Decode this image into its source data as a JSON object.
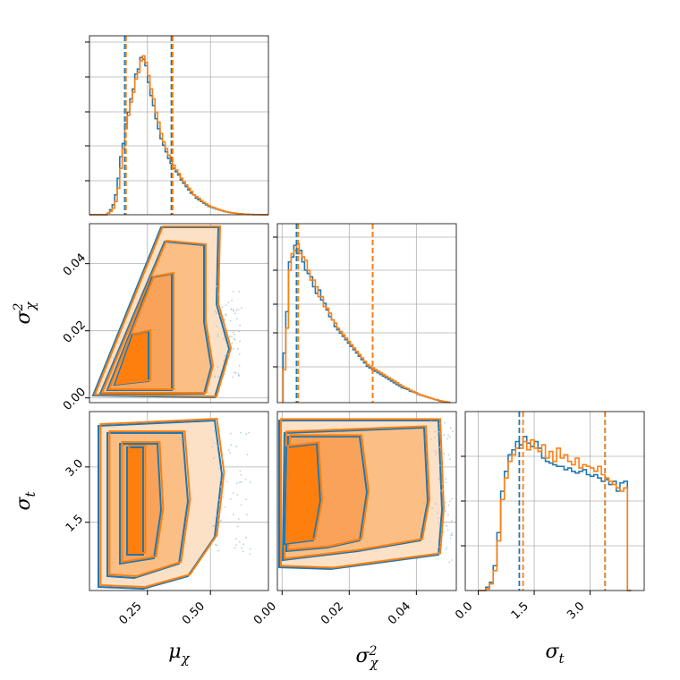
{
  "chart_data": {
    "type": "corner",
    "parameters": [
      "μχ",
      "σχ²",
      "σt"
    ],
    "axis_labels": {
      "mu_chi": {
        "base": "μ",
        "sub": "χ"
      },
      "sigma2_chi": {
        "base": "σ",
        "sup": "2",
        "sub": "χ"
      },
      "sigma_t": {
        "base": "σ",
        "sub": "t"
      }
    },
    "ranges": {
      "mu_chi": [
        0.02,
        0.73
      ],
      "sigma2_chi": [
        -0.0014,
        0.0519
      ],
      "sigma_t": [
        -0.35,
        4.45
      ]
    },
    "ticks": {
      "mu_chi": [
        "0.25",
        "0.50"
      ],
      "sigma2_chi": [
        "0.00",
        "0.02",
        "0.04"
      ],
      "sigma_t": [
        "0.0",
        "1.5",
        "3.0"
      ],
      "sigma_t_y": [
        "1.5",
        "3.0"
      ]
    },
    "colors": {
      "blue": "#1f77b4",
      "orange": "#ff7f0e"
    },
    "grid": true,
    "series": [
      {
        "color": "#1f77b4",
        "quantiles": {
          "mu_chi": [
            0.16,
            0.345
          ],
          "sigma2_chi": [
            0.0043,
            0.027
          ],
          "sigma_t": [
            1.1,
            3.4
          ]
        }
      },
      {
        "color": "#ff7f0e",
        "quantiles": {
          "mu_chi": [
            0.165,
            0.35
          ],
          "sigma2_chi": [
            0.0048,
            0.027
          ],
          "sigma_t": [
            1.2,
            3.4
          ]
        }
      }
    ],
    "hist_mu_chi": {
      "x": [
        0.025,
        0.035,
        0.045,
        0.055,
        0.065,
        0.075,
        0.085,
        0.095,
        0.105,
        0.115,
        0.125,
        0.135,
        0.145,
        0.155,
        0.165,
        0.175,
        0.185,
        0.195,
        0.205,
        0.215,
        0.225,
        0.235,
        0.245,
        0.255,
        0.265,
        0.275,
        0.285,
        0.295,
        0.305,
        0.315,
        0.325,
        0.335,
        0.345,
        0.355,
        0.365,
        0.375,
        0.385,
        0.395,
        0.405,
        0.415,
        0.425,
        0.435,
        0.445,
        0.455,
        0.465,
        0.475,
        0.485,
        0.495,
        0.505,
        0.515,
        0.525,
        0.535,
        0.545,
        0.555,
        0.565,
        0.575,
        0.585,
        0.595,
        0.605,
        0.615,
        0.625,
        0.635,
        0.645,
        0.655,
        0.665,
        0.675,
        0.685,
        0.695,
        0.705,
        0.715,
        0.725
      ],
      "blue": [
        0,
        0,
        0,
        0,
        0,
        0,
        0,
        0.01,
        0.03,
        0.06,
        0.12,
        0.22,
        0.35,
        0.43,
        0.55,
        0.62,
        0.7,
        0.76,
        0.85,
        0.88,
        0.95,
        0.94,
        0.9,
        0.8,
        0.72,
        0.66,
        0.58,
        0.52,
        0.46,
        0.42,
        0.38,
        0.34,
        0.31,
        0.28,
        0.26,
        0.24,
        0.21,
        0.19,
        0.17,
        0.15,
        0.13,
        0.12,
        0.1,
        0.09,
        0.08,
        0.07,
        0.06,
        0.05,
        0.045,
        0.04,
        0.035,
        0.03,
        0.025,
        0.02,
        0.017,
        0.014,
        0.012,
        0.01,
        0.008,
        0.006,
        0.005,
        0.004,
        0.003,
        0.002,
        0.002,
        0.001,
        0.001,
        0.001,
        0,
        0,
        0
      ],
      "orange": [
        0,
        0,
        0,
        0,
        0,
        0,
        0,
        0.01,
        0.02,
        0.04,
        0.08,
        0.16,
        0.28,
        0.4,
        0.52,
        0.6,
        0.68,
        0.74,
        0.82,
        0.86,
        0.93,
        0.96,
        0.92,
        0.84,
        0.76,
        0.7,
        0.62,
        0.56,
        0.49,
        0.44,
        0.4,
        0.36,
        0.33,
        0.3,
        0.27,
        0.25,
        0.22,
        0.2,
        0.18,
        0.16,
        0.14,
        0.12,
        0.11,
        0.1,
        0.085,
        0.075,
        0.065,
        0.055,
        0.048,
        0.042,
        0.036,
        0.031,
        0.026,
        0.022,
        0.018,
        0.015,
        0.012,
        0.01,
        0.008,
        0.006,
        0.005,
        0.004,
        0.003,
        0.002,
        0.002,
        0.001,
        0.001,
        0.001,
        0,
        0,
        0
      ]
    },
    "hist_sigma2_chi": {
      "x": [
        0.0007,
        0.0015,
        0.0023,
        0.0031,
        0.0039,
        0.0047,
        0.0055,
        0.0063,
        0.0071,
        0.0079,
        0.0087,
        0.0095,
        0.0103,
        0.0111,
        0.0119,
        0.0127,
        0.0135,
        0.0143,
        0.0151,
        0.0159,
        0.0167,
        0.0175,
        0.0183,
        0.0191,
        0.0199,
        0.0207,
        0.0215,
        0.0223,
        0.0231,
        0.0239,
        0.0247,
        0.0255,
        0.0263,
        0.0271,
        0.0279,
        0.0287,
        0.0295,
        0.0303,
        0.0311,
        0.0319,
        0.0327,
        0.0335,
        0.0343,
        0.0351,
        0.0359,
        0.0367,
        0.0375,
        0.0383,
        0.0391,
        0.0399,
        0.0407,
        0.0415,
        0.0423,
        0.0431,
        0.0439,
        0.0447,
        0.0455,
        0.0463,
        0.0471,
        0.0479,
        0.0487,
        0.0495
      ],
      "blue": [
        0.3,
        0.55,
        0.85,
        0.88,
        0.95,
        0.9,
        0.92,
        0.85,
        0.8,
        0.78,
        0.76,
        0.7,
        0.66,
        0.68,
        0.62,
        0.6,
        0.56,
        0.52,
        0.5,
        0.46,
        0.44,
        0.42,
        0.4,
        0.38,
        0.36,
        0.34,
        0.32,
        0.3,
        0.28,
        0.26,
        0.24,
        0.22,
        0.21,
        0.2,
        0.19,
        0.18,
        0.17,
        0.16,
        0.15,
        0.14,
        0.13,
        0.12,
        0.11,
        0.1,
        0.09,
        0.085,
        0.08,
        0.07,
        0.065,
        0.06,
        0.05,
        0.045,
        0.04,
        0.035,
        0.03,
        0.025,
        0.02,
        0.015,
        0.01,
        0.008,
        0.005,
        0.003
      ],
      "orange": [
        0.2,
        0.45,
        0.8,
        0.9,
        0.92,
        0.96,
        0.9,
        0.88,
        0.86,
        0.8,
        0.74,
        0.74,
        0.7,
        0.64,
        0.64,
        0.58,
        0.57,
        0.54,
        0.5,
        0.48,
        0.45,
        0.43,
        0.41,
        0.39,
        0.37,
        0.35,
        0.33,
        0.31,
        0.29,
        0.27,
        0.25,
        0.23,
        0.22,
        0.21,
        0.2,
        0.19,
        0.18,
        0.17,
        0.16,
        0.15,
        0.14,
        0.13,
        0.12,
        0.11,
        0.1,
        0.09,
        0.085,
        0.075,
        0.068,
        0.06,
        0.052,
        0.046,
        0.04,
        0.035,
        0.03,
        0.025,
        0.02,
        0.016,
        0.012,
        0.008,
        0.005,
        0.003
      ]
    },
    "hist_sigma_t": {
      "x": [
        0.05,
        0.15,
        0.25,
        0.35,
        0.45,
        0.55,
        0.65,
        0.75,
        0.85,
        0.95,
        1.05,
        1.15,
        1.25,
        1.35,
        1.45,
        1.55,
        1.65,
        1.75,
        1.85,
        1.95,
        2.05,
        2.15,
        2.25,
        2.35,
        2.45,
        2.55,
        2.65,
        2.75,
        2.85,
        2.95,
        3.05,
        3.15,
        3.25,
        3.35,
        3.45,
        3.55,
        3.65,
        3.75,
        3.85,
        3.95,
        4.05
      ],
      "blue": [
        0,
        0,
        0.02,
        0.05,
        0.15,
        0.35,
        0.6,
        0.72,
        0.82,
        0.85,
        0.9,
        0.88,
        0.93,
        0.89,
        0.87,
        0.9,
        0.86,
        0.8,
        0.78,
        0.77,
        0.76,
        0.75,
        0.75,
        0.73,
        0.74,
        0.72,
        0.71,
        0.72,
        0.73,
        0.7,
        0.69,
        0.7,
        0.68,
        0.66,
        0.67,
        0.64,
        0.66,
        0.6,
        0.65,
        0.66,
        0
      ],
      "orange": [
        0,
        0,
        0.01,
        0.04,
        0.12,
        0.3,
        0.55,
        0.68,
        0.78,
        0.82,
        0.86,
        0.86,
        0.9,
        0.85,
        0.91,
        0.86,
        0.84,
        0.88,
        0.8,
        0.84,
        0.78,
        0.86,
        0.8,
        0.82,
        0.78,
        0.76,
        0.8,
        0.74,
        0.76,
        0.75,
        0.74,
        0.72,
        0.75,
        0.7,
        0.68,
        0.66,
        0.64,
        0.62,
        0.6,
        0.62,
        0
      ]
    }
  }
}
